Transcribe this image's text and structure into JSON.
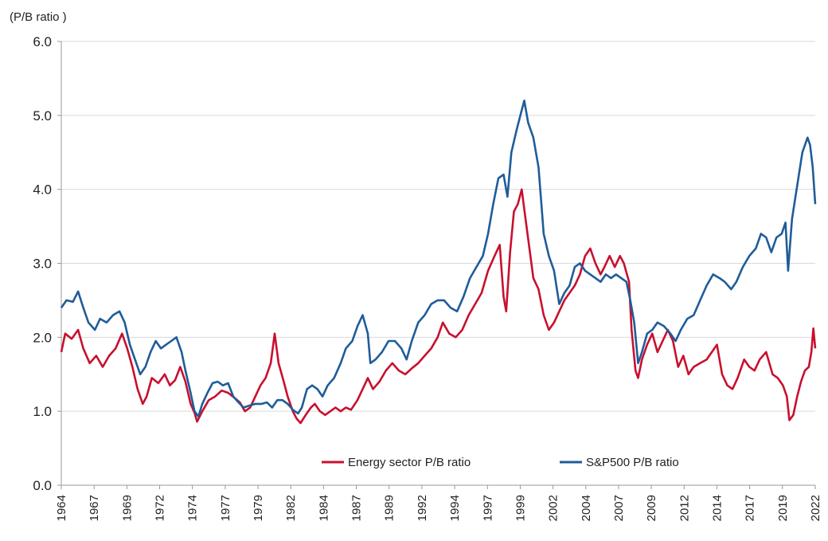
{
  "chart_data": {
    "type": "line",
    "ylabel": "(P/B ratio )",
    "ylim": [
      0,
      6
    ],
    "yticks": [
      "0.0",
      "1.0",
      "2.0",
      "3.0",
      "4.0",
      "5.0",
      "6.0"
    ],
    "xlim": [
      1964.0,
      2022.3
    ],
    "xtick_labels": [
      "1964",
      "1967",
      "1969",
      "1972",
      "1974",
      "1977",
      "1979",
      "1982",
      "1984",
      "1987",
      "1989",
      "1992",
      "1994",
      "1997",
      "1999",
      "2002",
      "2004",
      "2007",
      "2009",
      "2012",
      "2014",
      "2017",
      "2019",
      "2022"
    ],
    "grid": "horizontal",
    "legend_position": "bottom",
    "series": [
      {
        "name": "Energy sector P/B ratio",
        "color": "#c8102e",
        "points": [
          [
            1964.0,
            1.8
          ],
          [
            1964.3,
            2.05
          ],
          [
            1964.8,
            1.98
          ],
          [
            1965.3,
            2.1
          ],
          [
            1965.7,
            1.85
          ],
          [
            1966.2,
            1.65
          ],
          [
            1966.7,
            1.75
          ],
          [
            1967.2,
            1.6
          ],
          [
            1967.7,
            1.75
          ],
          [
            1968.2,
            1.85
          ],
          [
            1968.7,
            2.05
          ],
          [
            1969.1,
            1.85
          ],
          [
            1969.5,
            1.6
          ],
          [
            1969.9,
            1.3
          ],
          [
            1970.3,
            1.1
          ],
          [
            1970.6,
            1.2
          ],
          [
            1971.0,
            1.45
          ],
          [
            1971.5,
            1.38
          ],
          [
            1972.0,
            1.5
          ],
          [
            1972.4,
            1.35
          ],
          [
            1972.8,
            1.42
          ],
          [
            1973.2,
            1.6
          ],
          [
            1973.6,
            1.4
          ],
          [
            1974.0,
            1.1
          ],
          [
            1974.3,
            0.98
          ],
          [
            1974.5,
            0.86
          ],
          [
            1974.9,
            1.0
          ],
          [
            1975.4,
            1.15
          ],
          [
            1975.9,
            1.2
          ],
          [
            1976.4,
            1.28
          ],
          [
            1976.9,
            1.25
          ],
          [
            1977.4,
            1.18
          ],
          [
            1977.8,
            1.12
          ],
          [
            1978.2,
            1.0
          ],
          [
            1978.6,
            1.05
          ],
          [
            1979.0,
            1.2
          ],
          [
            1979.4,
            1.35
          ],
          [
            1979.8,
            1.45
          ],
          [
            1980.2,
            1.65
          ],
          [
            1980.5,
            2.05
          ],
          [
            1980.8,
            1.65
          ],
          [
            1981.2,
            1.4
          ],
          [
            1981.5,
            1.2
          ],
          [
            1981.9,
            1.0
          ],
          [
            1982.2,
            0.9
          ],
          [
            1982.5,
            0.84
          ],
          [
            1982.9,
            0.95
          ],
          [
            1983.3,
            1.05
          ],
          [
            1983.6,
            1.1
          ],
          [
            1984.0,
            1.0
          ],
          [
            1984.4,
            0.95
          ],
          [
            1984.8,
            1.0
          ],
          [
            1985.2,
            1.05
          ],
          [
            1985.6,
            1.0
          ],
          [
            1986.0,
            1.05
          ],
          [
            1986.4,
            1.02
          ],
          [
            1986.9,
            1.15
          ],
          [
            1987.3,
            1.3
          ],
          [
            1987.7,
            1.45
          ],
          [
            1988.1,
            1.3
          ],
          [
            1988.6,
            1.4
          ],
          [
            1989.1,
            1.55
          ],
          [
            1989.6,
            1.65
          ],
          [
            1990.1,
            1.55
          ],
          [
            1990.6,
            1.5
          ],
          [
            1991.1,
            1.58
          ],
          [
            1991.6,
            1.65
          ],
          [
            1992.1,
            1.75
          ],
          [
            1992.6,
            1.85
          ],
          [
            1993.1,
            2.0
          ],
          [
            1993.5,
            2.2
          ],
          [
            1994.0,
            2.05
          ],
          [
            1994.5,
            2.0
          ],
          [
            1995.0,
            2.1
          ],
          [
            1995.5,
            2.3
          ],
          [
            1996.0,
            2.45
          ],
          [
            1996.5,
            2.6
          ],
          [
            1997.0,
            2.9
          ],
          [
            1997.5,
            3.1
          ],
          [
            1997.9,
            3.25
          ],
          [
            1998.2,
            2.55
          ],
          [
            1998.4,
            2.35
          ],
          [
            1998.7,
            3.15
          ],
          [
            1999.0,
            3.7
          ],
          [
            1999.3,
            3.8
          ],
          [
            1999.6,
            4.0
          ],
          [
            1999.9,
            3.6
          ],
          [
            2000.2,
            3.2
          ],
          [
            2000.5,
            2.8
          ],
          [
            2000.9,
            2.65
          ],
          [
            2001.3,
            2.3
          ],
          [
            2001.7,
            2.1
          ],
          [
            2002.1,
            2.2
          ],
          [
            2002.5,
            2.35
          ],
          [
            2002.9,
            2.5
          ],
          [
            2003.3,
            2.6
          ],
          [
            2003.7,
            2.7
          ],
          [
            2004.1,
            2.85
          ],
          [
            2004.5,
            3.1
          ],
          [
            2004.9,
            3.2
          ],
          [
            2005.3,
            3.0
          ],
          [
            2005.7,
            2.85
          ],
          [
            2006.0,
            2.95
          ],
          [
            2006.4,
            3.1
          ],
          [
            2006.8,
            2.95
          ],
          [
            2007.2,
            3.1
          ],
          [
            2007.5,
            3.0
          ],
          [
            2007.9,
            2.75
          ],
          [
            2008.1,
            2.1
          ],
          [
            2008.4,
            1.55
          ],
          [
            2008.6,
            1.45
          ],
          [
            2008.9,
            1.7
          ],
          [
            2009.3,
            1.9
          ],
          [
            2009.7,
            2.05
          ],
          [
            2010.1,
            1.8
          ],
          [
            2010.5,
            1.95
          ],
          [
            2010.9,
            2.1
          ],
          [
            2011.3,
            1.95
          ],
          [
            2011.7,
            1.6
          ],
          [
            2012.1,
            1.75
          ],
          [
            2012.5,
            1.5
          ],
          [
            2012.9,
            1.6
          ],
          [
            2013.4,
            1.65
          ],
          [
            2013.9,
            1.7
          ],
          [
            2014.3,
            1.8
          ],
          [
            2014.7,
            1.9
          ],
          [
            2015.1,
            1.5
          ],
          [
            2015.5,
            1.35
          ],
          [
            2015.9,
            1.3
          ],
          [
            2016.3,
            1.45
          ],
          [
            2016.8,
            1.7
          ],
          [
            2017.2,
            1.6
          ],
          [
            2017.6,
            1.55
          ],
          [
            2018.0,
            1.7
          ],
          [
            2018.5,
            1.8
          ],
          [
            2019.0,
            1.5
          ],
          [
            2019.4,
            1.45
          ],
          [
            2019.8,
            1.35
          ],
          [
            2020.1,
            1.2
          ],
          [
            2020.3,
            0.88
          ],
          [
            2020.6,
            0.95
          ],
          [
            2020.9,
            1.2
          ],
          [
            2021.2,
            1.4
          ],
          [
            2021.5,
            1.55
          ],
          [
            2021.8,
            1.6
          ],
          [
            2022.0,
            1.8
          ],
          [
            2022.15,
            2.12
          ],
          [
            2022.3,
            1.85
          ]
        ]
      },
      {
        "name": "S&P500 P/B ratio",
        "color": "#1f5c99",
        "points": [
          [
            1964.0,
            2.4
          ],
          [
            1964.4,
            2.5
          ],
          [
            1964.9,
            2.48
          ],
          [
            1965.3,
            2.62
          ],
          [
            1965.7,
            2.4
          ],
          [
            1966.1,
            2.2
          ],
          [
            1966.6,
            2.1
          ],
          [
            1967.0,
            2.25
          ],
          [
            1967.5,
            2.2
          ],
          [
            1968.0,
            2.3
          ],
          [
            1968.5,
            2.35
          ],
          [
            1968.9,
            2.2
          ],
          [
            1969.3,
            1.9
          ],
          [
            1969.7,
            1.7
          ],
          [
            1970.1,
            1.5
          ],
          [
            1970.5,
            1.6
          ],
          [
            1970.9,
            1.8
          ],
          [
            1971.3,
            1.95
          ],
          [
            1971.7,
            1.85
          ],
          [
            1972.1,
            1.9
          ],
          [
            1972.5,
            1.95
          ],
          [
            1972.9,
            2.0
          ],
          [
            1973.3,
            1.8
          ],
          [
            1973.6,
            1.55
          ],
          [
            1974.0,
            1.25
          ],
          [
            1974.3,
            1.0
          ],
          [
            1974.6,
            0.93
          ],
          [
            1974.9,
            1.1
          ],
          [
            1975.3,
            1.25
          ],
          [
            1975.7,
            1.38
          ],
          [
            1976.1,
            1.4
          ],
          [
            1976.5,
            1.35
          ],
          [
            1976.9,
            1.38
          ],
          [
            1977.3,
            1.2
          ],
          [
            1977.7,
            1.12
          ],
          [
            1978.1,
            1.05
          ],
          [
            1978.6,
            1.08
          ],
          [
            1979.0,
            1.1
          ],
          [
            1979.5,
            1.1
          ],
          [
            1979.9,
            1.12
          ],
          [
            1980.3,
            1.05
          ],
          [
            1980.7,
            1.15
          ],
          [
            1981.1,
            1.15
          ],
          [
            1981.5,
            1.1
          ],
          [
            1981.9,
            1.02
          ],
          [
            1982.3,
            0.97
          ],
          [
            1982.6,
            1.05
          ],
          [
            1983.0,
            1.3
          ],
          [
            1983.4,
            1.35
          ],
          [
            1983.8,
            1.3
          ],
          [
            1984.2,
            1.2
          ],
          [
            1984.6,
            1.35
          ],
          [
            1985.1,
            1.45
          ],
          [
            1985.6,
            1.65
          ],
          [
            1986.0,
            1.85
          ],
          [
            1986.5,
            1.95
          ],
          [
            1986.9,
            2.15
          ],
          [
            1987.3,
            2.3
          ],
          [
            1987.7,
            2.05
          ],
          [
            1987.9,
            1.65
          ],
          [
            1988.3,
            1.7
          ],
          [
            1988.8,
            1.8
          ],
          [
            1989.3,
            1.95
          ],
          [
            1989.8,
            1.95
          ],
          [
            1990.3,
            1.85
          ],
          [
            1990.7,
            1.7
          ],
          [
            1991.1,
            1.95
          ],
          [
            1991.6,
            2.2
          ],
          [
            1992.1,
            2.3
          ],
          [
            1992.6,
            2.45
          ],
          [
            1993.1,
            2.5
          ],
          [
            1993.6,
            2.5
          ],
          [
            1994.1,
            2.4
          ],
          [
            1994.6,
            2.35
          ],
          [
            1995.1,
            2.55
          ],
          [
            1995.6,
            2.8
          ],
          [
            1996.1,
            2.95
          ],
          [
            1996.6,
            3.1
          ],
          [
            1997.0,
            3.4
          ],
          [
            1997.4,
            3.8
          ],
          [
            1997.8,
            4.15
          ],
          [
            1998.2,
            4.2
          ],
          [
            1998.5,
            3.9
          ],
          [
            1998.8,
            4.5
          ],
          [
            1999.2,
            4.8
          ],
          [
            1999.5,
            5.0
          ],
          [
            1999.8,
            5.2
          ],
          [
            2000.1,
            4.9
          ],
          [
            2000.5,
            4.7
          ],
          [
            2000.9,
            4.3
          ],
          [
            2001.3,
            3.4
          ],
          [
            2001.7,
            3.1
          ],
          [
            2002.1,
            2.9
          ],
          [
            2002.5,
            2.45
          ],
          [
            2002.9,
            2.6
          ],
          [
            2003.3,
            2.7
          ],
          [
            2003.7,
            2.95
          ],
          [
            2004.1,
            3.0
          ],
          [
            2004.5,
            2.9
          ],
          [
            2004.9,
            2.85
          ],
          [
            2005.3,
            2.8
          ],
          [
            2005.7,
            2.75
          ],
          [
            2006.1,
            2.85
          ],
          [
            2006.5,
            2.8
          ],
          [
            2006.9,
            2.85
          ],
          [
            2007.3,
            2.8
          ],
          [
            2007.7,
            2.75
          ],
          [
            2008.0,
            2.5
          ],
          [
            2008.3,
            2.2
          ],
          [
            2008.6,
            1.65
          ],
          [
            2008.9,
            1.8
          ],
          [
            2009.3,
            2.05
          ],
          [
            2009.7,
            2.1
          ],
          [
            2010.1,
            2.2
          ],
          [
            2010.6,
            2.15
          ],
          [
            2011.1,
            2.05
          ],
          [
            2011.5,
            1.95
          ],
          [
            2011.9,
            2.1
          ],
          [
            2012.4,
            2.25
          ],
          [
            2012.9,
            2.3
          ],
          [
            2013.4,
            2.5
          ],
          [
            2013.9,
            2.7
          ],
          [
            2014.4,
            2.85
          ],
          [
            2014.9,
            2.8
          ],
          [
            2015.3,
            2.75
          ],
          [
            2015.8,
            2.65
          ],
          [
            2016.2,
            2.75
          ],
          [
            2016.7,
            2.95
          ],
          [
            2017.2,
            3.1
          ],
          [
            2017.7,
            3.2
          ],
          [
            2018.1,
            3.4
          ],
          [
            2018.5,
            3.35
          ],
          [
            2018.9,
            3.15
          ],
          [
            2019.3,
            3.35
          ],
          [
            2019.7,
            3.4
          ],
          [
            2020.0,
            3.55
          ],
          [
            2020.2,
            2.9
          ],
          [
            2020.5,
            3.6
          ],
          [
            2020.9,
            4.05
          ],
          [
            2021.3,
            4.5
          ],
          [
            2021.7,
            4.7
          ],
          [
            2021.9,
            4.6
          ],
          [
            2022.1,
            4.3
          ],
          [
            2022.3,
            3.8
          ]
        ]
      }
    ]
  }
}
